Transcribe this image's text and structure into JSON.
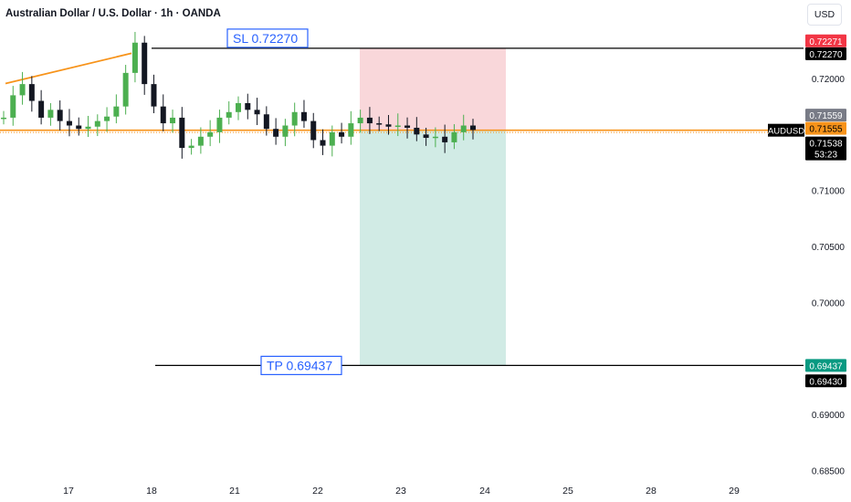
{
  "header": {
    "title": "Australian Dollar / U.S. Dollar · 1h · OANDA",
    "currency": "USD"
  },
  "price_scale": {
    "ticks": [
      "0.72000",
      "0.71000",
      "0.70500",
      "0.70000",
      "0.69000",
      "0.68500"
    ],
    "badges": [
      {
        "label": "0.72271",
        "value": 0.72271,
        "bg": "#f23645",
        "fg": "#ffffff"
      },
      {
        "label": "0.72270",
        "value": 0.7227,
        "bg": "#000000",
        "fg": "#ffffff"
      },
      {
        "label": "0.71559",
        "value": 0.71559,
        "bg": "#787b86",
        "fg": "#ffffff"
      },
      {
        "label": "0.71555",
        "value": 0.71555,
        "bg": "#f7931a",
        "fg": "#000000"
      },
      {
        "label": "0.71538",
        "value": 0.71538,
        "bg": "#000000",
        "fg": "#ffffff",
        "sub": "53:23"
      },
      {
        "label": "0.69437",
        "value": 0.69437,
        "bg": "#089981",
        "fg": "#ffffff"
      },
      {
        "label": "0.69430",
        "value": 0.6943,
        "bg": "#000000",
        "fg": "#ffffff"
      }
    ],
    "symbol_tag": "AUDUSD"
  },
  "time_axis": {
    "labels": [
      "17",
      "18",
      "21",
      "22",
      "23",
      "24",
      "25",
      "28",
      "29"
    ]
  },
  "annotations": {
    "sl_label": "SL 0.72270",
    "tp_label": "TP 0.69437"
  },
  "colors": {
    "up": "#4caf50",
    "down": "#131722",
    "trendline": "#f7931a",
    "risk_zone": "#f7c9ce",
    "reward_zone": "#c9e8e0",
    "label_blue": "#2962ff"
  },
  "chart_data": {
    "type": "candlestick",
    "symbol": "AUDUSD",
    "interval": "1h",
    "ylim": [
      0.685,
      0.7245
    ],
    "x_ticks": [
      "17",
      "18",
      "21",
      "22",
      "23",
      "24",
      "25",
      "28",
      "29"
    ],
    "stop_loss": 0.7227,
    "take_profit": 0.69437,
    "entry_price": 0.71538,
    "current_price": 0.71538,
    "trendline": {
      "start": 0.71955,
      "end": 0.72225
    },
    "series": [
      {
        "values": [
          0.7165,
          0.7185,
          0.7195,
          0.718,
          0.7165,
          0.7172,
          0.7162,
          0.7158,
          0.7155,
          0.7157,
          0.7162,
          0.7166,
          0.7175,
          0.7205,
          0.7232,
          0.7195,
          0.7175,
          0.716,
          0.7165,
          0.7138,
          0.714,
          0.7148,
          0.7152,
          0.7165,
          0.717,
          0.7178,
          0.7172,
          0.7168,
          0.7155,
          0.7148,
          0.7158,
          0.717,
          0.7162,
          0.7145,
          0.714,
          0.7152,
          0.7148,
          0.716,
          0.7165,
          0.716,
          0.7159,
          0.7157,
          0.7158,
          0.7156,
          0.715,
          0.7147,
          0.7148,
          0.7143,
          0.7152,
          0.7158,
          0.7154
        ]
      }
    ]
  }
}
